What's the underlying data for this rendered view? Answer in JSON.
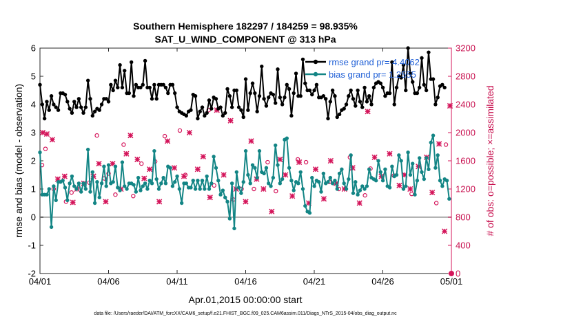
{
  "chart_data": {
    "type": "line",
    "title": "Southern Hemisphere 182297 / 184259 = 98.935%",
    "subtitle": "SAT_U_WIND_COMPONENT @ 313 hPa",
    "xlabel": "Apr.01,2015 00:00:00 start",
    "ylabel": "rmse and bias (model - observation)",
    "ylabel_right": "# of obs: o=possible; ×=assimilated",
    "footnote": "data file: /Users/raeder/DAI/ATM_forcXX/CAM6_setup/f.e21.FHIST_BGC.f09_025.CAM6assim.011/Diags_NTrS_2015-04/obs_diag_output.nc",
    "x_ticks": [
      "04/01",
      "04/06",
      "04/11",
      "04/16",
      "04/21",
      "04/26",
      "05/01"
    ],
    "y_ticks": [
      "-2",
      "-1",
      "0",
      "1",
      "2",
      "3",
      "4",
      "5",
      "6"
    ],
    "y_right_ticks": [
      "0",
      "400",
      "800",
      "1200",
      "1600",
      "2000",
      "2400",
      "2800",
      "3200"
    ],
    "ylim": [
      -2,
      6
    ],
    "ylim_right": [
      0,
      3200
    ],
    "xlim": [
      0,
      30
    ],
    "colors": {
      "rmse": "#000000",
      "bias": "#138585",
      "obs": "#d4145a",
      "legend_text": "#1f5fd6",
      "zero_line": "#b3b3b3"
    },
    "legend": {
      "rmse_label": "rmse grand pr= 4.4062",
      "bias_label": "bias grand pr= 1.2555"
    },
    "series": [
      {
        "name": "rmse",
        "values": [
          4.7,
          4.0,
          3.5,
          4.1,
          3.8,
          4.3,
          4.0,
          3.9,
          3.8,
          4.4,
          4.4,
          4.35,
          4.1,
          3.85,
          3.7,
          4.1,
          3.9,
          4.2,
          3.9,
          3.7,
          3.9,
          4.85,
          4.2,
          3.6,
          3.75,
          3.85,
          3.8,
          4.0,
          4.2,
          4.2,
          4.1,
          4.7,
          4.5,
          4.85,
          4.6,
          5.4,
          4.6,
          5.2,
          4.4,
          4.4,
          5.5,
          4.3,
          4.7,
          4.6,
          4.6,
          4.7,
          5.55,
          4.6,
          4.6,
          4.2,
          4.7,
          4.2,
          4.7,
          4.7,
          4.7,
          4.6,
          4.4,
          4.7,
          4.7,
          4.4,
          3.9,
          3.75,
          3.7,
          3.65,
          3.6,
          3.75,
          3.8,
          4.35,
          4.3,
          3.5,
          3.75,
          3.9,
          3.6,
          3.7,
          4.15,
          3.85,
          4.25,
          4.2,
          3.85,
          3.9,
          3.6,
          3.7,
          4.55,
          4.3,
          3.9,
          4.5,
          4.5,
          3.9,
          3.8,
          3.55,
          4.9,
          3.8,
          4.4,
          4.75,
          4.4,
          3.75,
          4.3,
          5.35,
          4.2,
          3.95,
          4.25,
          4.4,
          4.35,
          4.05,
          5.25,
          4.25,
          4.0,
          4.25,
          4.7,
          4.55,
          3.6,
          4.4,
          5.1,
          4.3,
          4.3,
          5.6,
          4.75,
          4.5,
          4.5,
          4.35,
          4.5,
          4.7,
          4.25,
          4.25,
          4.3,
          4.2,
          3.5,
          4.1,
          4.5,
          4.3,
          3.55,
          3.65,
          3.8,
          3.85,
          4.0,
          4.3,
          4.5,
          4.2,
          3.95,
          4.5,
          4.1,
          3.9,
          4.6,
          4.1,
          4.3,
          4.0,
          4.6,
          4.75,
          4.8,
          4.75,
          4.6,
          4.3,
          4.4,
          4.4,
          5.5,
          4.0,
          4.6,
          5.0,
          4.95,
          5.4,
          4.5,
          6.0,
          5.1,
          4.8,
          4.4,
          4.4,
          4.6,
          5.65,
          4.7,
          4.5,
          5.85,
          4.9,
          4.9,
          4.0,
          4.25,
          4.65,
          4.7,
          4.6
        ],
        "x_start": 0,
        "x_step": 0.1667
      },
      {
        "name": "bias",
        "values": [
          2.3,
          0.8,
          0.8,
          0.8,
          1.0,
          -0.35,
          1.1,
          0.6,
          1.25,
          1.25,
          1.3,
          1.05,
          0.6,
          1.2,
          1.45,
          1.1,
          1.0,
          1.2,
          0.9,
          1.2,
          1.0,
          2.4,
          0.9,
          1.6,
          0.5,
          1.25,
          0.7,
          1.2,
          1.8,
          1.1,
          1.85,
          1.2,
          1.25,
          1.8,
          1.05,
          0.95,
          1.95,
          1.1,
          1.0,
          1.2,
          1.2,
          1.15,
          0.9,
          1.4,
          0.95,
          1.1,
          1.2,
          1.0,
          1.3,
          1.2,
          2.35,
          1.35,
          1.0,
          1.2,
          1.4,
          1.2,
          1.8,
          1.75,
          1.1,
          1.25,
          1.45,
          1.0,
          0.5,
          1.2,
          1.2,
          1.05,
          1.05,
          1.3,
          1.0,
          1.3,
          1.0,
          1.3,
          1.0,
          1.45,
          1.0,
          1.2,
          2.15,
          1.75,
          1.3,
          0.8,
          0.95,
          0.7,
          0.55,
          -0.05,
          1.2,
          -0.4,
          1.6,
          1.05,
          0.85,
          1.25,
          2.35,
          1.5,
          1.2,
          1.85,
          1.75,
          1.4,
          2.35,
          1.6,
          1.55,
          1.75,
          1.2,
          1.1,
          1.4,
          2.55,
          1.85,
          1.2,
          1.35,
          2.75,
          2.8,
          1.75,
          1.3,
          0.95,
          1.25,
          1.2,
          1.6,
          1.0,
          0.4,
          0.2,
          0.15,
          1.4,
          1.1,
          1.3,
          1.25,
          0.9,
          1.55,
          1.2,
          1.25,
          1.4,
          1.2,
          1.3,
          1.0,
          1.55,
          1.7,
          1.2,
          1.0,
          1.35,
          2.2,
          0.85,
          1.25,
          0.8,
          0.95,
          1.1,
          1.0,
          1.1,
          1.7,
          1.4,
          1.35,
          1.3,
          2.0,
          1.6,
          1.3,
          1.7,
          1.1,
          1.05,
          1.8,
          1.45,
          1.5,
          2.2,
          2.0,
          1.0,
          1.1,
          2.3,
          1.5,
          1.9,
          0.8,
          1.3,
          2.1,
          1.6,
          1.35,
          2.1,
          1.7,
          2.65,
          2.9,
          1.75,
          2.2,
          1.3,
          1.1,
          1.35,
          1.3,
          0.65
        ],
        "x_start": 0,
        "x_step": 0.1667
      },
      {
        "name": "obs possible (right axis)",
        "marker": "o",
        "x": [
          0.15,
          0.4,
          1.0,
          1.9,
          2.3,
          3.6,
          4.15,
          4.7,
          5.0,
          5.5,
          6.1,
          6.8,
          7.4,
          8.4,
          9.1,
          10.2,
          10.6,
          12.3,
          12.7,
          14.1,
          14.7,
          15.6,
          16.6,
          17.2,
          18.8,
          19.4,
          21.1,
          21.8,
          22.6,
          23.7,
          24.1,
          25.8,
          27.1,
          28.9,
          29.6
        ],
        "y": [
          1540,
          1770,
          1200,
          1020,
          1150,
          1290,
          1960,
          1350,
          1420,
          1120,
          1830,
          1100,
          1560,
          1590,
          1950,
          2030,
          1400,
          2320,
          1250,
          1050,
          1200,
          1200,
          1580,
          1170,
          1620,
          1580,
          1300,
          1200,
          1650,
          1110,
          1490,
          1390,
          1130,
          1000,
          1830
        ],
        "values_note": "approximate counts"
      },
      {
        "name": "obs assimilated (right axis)",
        "marker": "x",
        "x": [
          0.2,
          0.5,
          0.9,
          1.3,
          1.8,
          2.4,
          2.7,
          3.2,
          3.9,
          4.3,
          4.8,
          5.3,
          5.9,
          6.3,
          6.6,
          7.1,
          7.6,
          8.0,
          8.7,
          9.3,
          9.8,
          10.5,
          10.9,
          11.5,
          11.9,
          12.4,
          12.9,
          13.4,
          13.9,
          14.3,
          15.0,
          15.4,
          15.8,
          16.3,
          16.9,
          17.5,
          17.9,
          18.4,
          18.9,
          19.6,
          20.1,
          20.7,
          21.2,
          21.6,
          22.2,
          22.8,
          23.3,
          23.9,
          24.4,
          24.9,
          25.5,
          26.2,
          26.6,
          27.0,
          27.6,
          28.2,
          28.6,
          29.1,
          29.5,
          29.9
        ],
        "y": [
          2000,
          1980,
          1900,
          1340,
          1380,
          1010,
          1200,
          1280,
          1380,
          1560,
          1020,
          1560,
          1200,
          1700,
          1960,
          1620,
          1350,
          1480,
          1020,
          1880,
          1500,
          1380,
          2000,
          1480,
          1660,
          1080,
          2320,
          1400,
          2170,
          1200,
          1020,
          1880,
          1340,
          1200,
          880,
          1620,
          1400,
          1100,
          1580,
          1000,
          1480,
          1060,
          1600,
          1280,
          1200,
          1500,
          1000,
          2300,
          1650,
          1380,
          1700,
          1250,
          1400,
          1200,
          1520,
          1650,
          1150,
          1840,
          600,
          2380
        ],
        "values_note": "approximate counts"
      }
    ]
  }
}
